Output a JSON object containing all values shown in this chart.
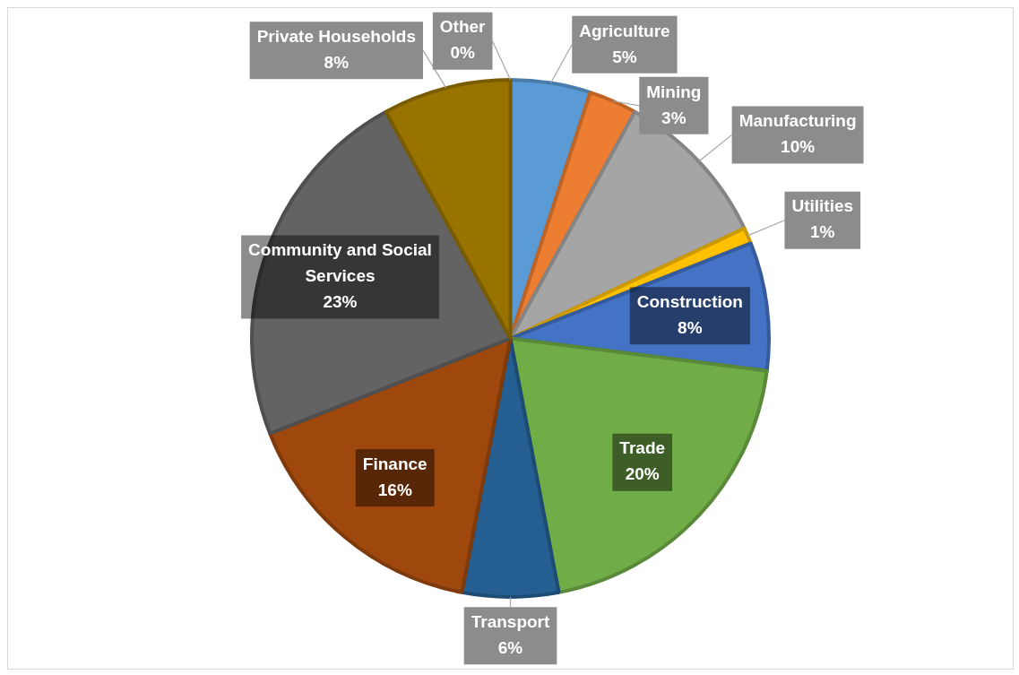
{
  "chart_data": {
    "type": "pie",
    "categories": [
      "Agriculture",
      "Mining",
      "Manufacturing",
      "Utilities",
      "Construction",
      "Trade",
      "Transport",
      "Finance",
      "Community and Social Services",
      "Private Households",
      "Other"
    ],
    "values": [
      5,
      3,
      10,
      1,
      8,
      20,
      6,
      16,
      23,
      8,
      0
    ],
    "value_labels": [
      "5%",
      "3%",
      "10%",
      "1%",
      "8%",
      "20%",
      "6%",
      "16%",
      "23%",
      "8%",
      "0%"
    ],
    "colors": [
      "#5b9bd5",
      "#ed7d31",
      "#a5a5a5",
      "#ffc000",
      "#4472c4",
      "#70ad47",
      "#255e91",
      "#9e480e",
      "#636363",
      "#997300",
      "#264478"
    ],
    "legend": false
  }
}
